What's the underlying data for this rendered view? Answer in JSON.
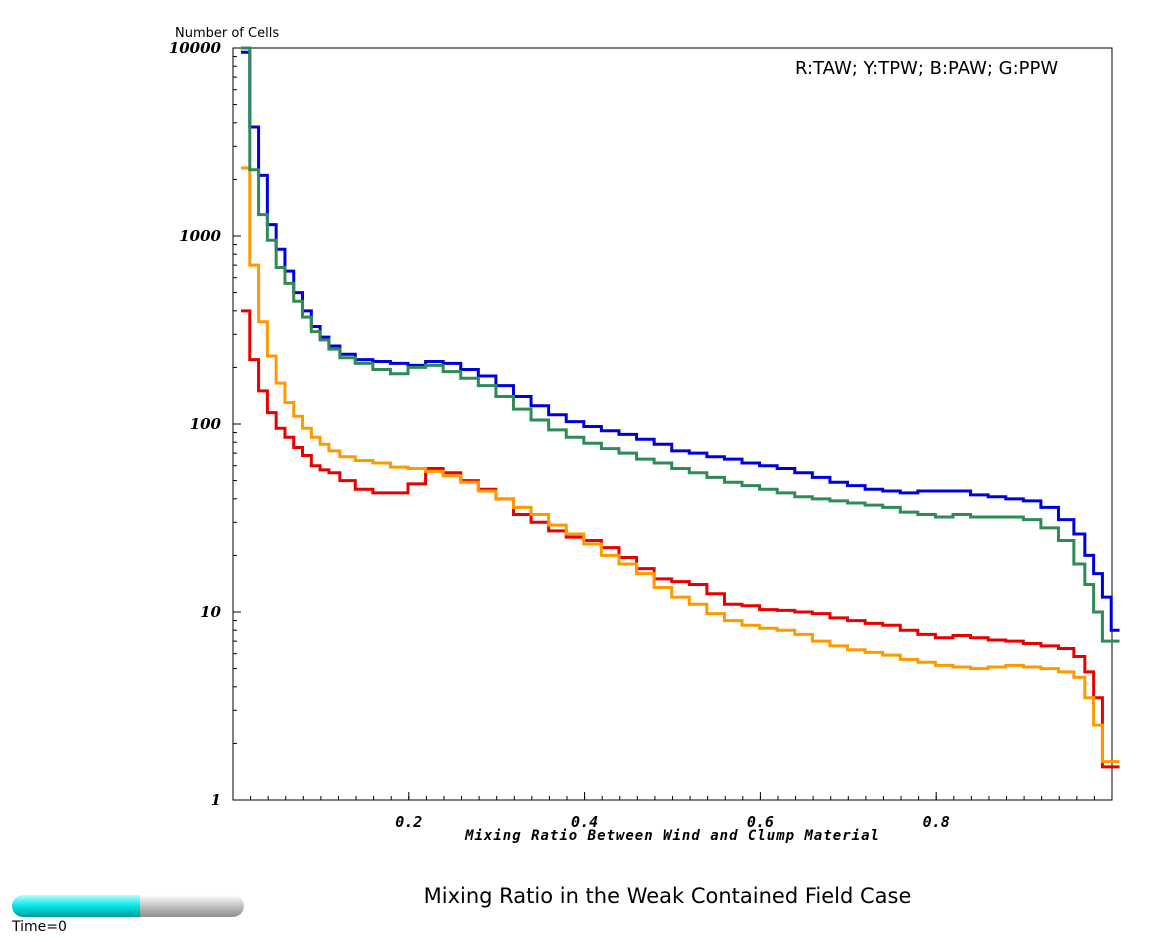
{
  "chart_data": {
    "type": "line",
    "title": "Mixing Ratio in the Weak Contained Field Case",
    "xlabel": "Mixing Ratio Between Wind and Clump Material",
    "ylabel": "Number of Cells",
    "xlim": [
      0,
      1
    ],
    "ylim": [
      1,
      10000
    ],
    "yscale": "log",
    "x_ticks": [
      "0.2",
      "0.4",
      "0.6",
      "0.8"
    ],
    "y_ticks": [
      "1",
      "10",
      "100",
      "1000",
      "10000"
    ],
    "legend": "R:TAW; Y:TPW; B:PAW; G:PPW",
    "legend_position": "top-right",
    "grid": false,
    "step": true,
    "x": [
      0.005,
      0.015,
      0.025,
      0.035,
      0.045,
      0.055,
      0.065,
      0.075,
      0.085,
      0.095,
      0.105,
      0.12,
      0.14,
      0.16,
      0.18,
      0.2,
      0.22,
      0.24,
      0.26,
      0.28,
      0.3,
      0.32,
      0.34,
      0.36,
      0.38,
      0.4,
      0.42,
      0.44,
      0.46,
      0.48,
      0.5,
      0.52,
      0.54,
      0.56,
      0.58,
      0.6,
      0.62,
      0.64,
      0.66,
      0.68,
      0.7,
      0.72,
      0.74,
      0.76,
      0.78,
      0.8,
      0.82,
      0.84,
      0.86,
      0.88,
      0.9,
      0.92,
      0.94,
      0.955,
      0.965,
      0.975,
      0.985,
      0.995
    ],
    "series": [
      {
        "name": "R",
        "color": "#e60000",
        "values": [
          400,
          220,
          150,
          115,
          95,
          85,
          75,
          68,
          60,
          57,
          55,
          50,
          45,
          43,
          43,
          48,
          58,
          55,
          50,
          45,
          40,
          33,
          30,
          27,
          25,
          24,
          22,
          19.5,
          17,
          15,
          14.5,
          14,
          12.5,
          11,
          10.8,
          10.3,
          10.2,
          10,
          9.8,
          9.3,
          9,
          8.7,
          8.5,
          8,
          7.6,
          7.3,
          7.5,
          7.3,
          7.1,
          7,
          6.8,
          6.6,
          6.4,
          5.8,
          4.8,
          3.5,
          1.5,
          1.5
        ]
      },
      {
        "name": "Y",
        "color": "#ff9900",
        "values": [
          2300,
          700,
          350,
          230,
          165,
          130,
          110,
          95,
          85,
          78,
          72,
          67,
          64,
          62,
          59,
          58,
          56,
          53,
          49,
          44,
          40,
          36,
          33,
          29,
          26,
          23,
          20,
          18,
          16,
          13.5,
          12,
          11,
          9.8,
          9,
          8.5,
          8.2,
          8,
          7.6,
          7,
          6.6,
          6.3,
          6.1,
          5.9,
          5.6,
          5.4,
          5.2,
          5.1,
          5,
          5.1,
          5.2,
          5.1,
          5,
          4.8,
          4.5,
          3.5,
          2.5,
          1.6,
          1.6
        ]
      },
      {
        "name": "B",
        "color": "#0000dd",
        "values": [
          9500,
          3800,
          2100,
          1150,
          850,
          650,
          500,
          400,
          330,
          290,
          260,
          235,
          220,
          215,
          210,
          205,
          215,
          210,
          195,
          180,
          160,
          140,
          125,
          112,
          103,
          97,
          92,
          88,
          83,
          78,
          72,
          70,
          67,
          65,
          62,
          60,
          58,
          55,
          52,
          49,
          47,
          45,
          44,
          43,
          44,
          44,
          44,
          42,
          41,
          40,
          39,
          36,
          31,
          26,
          20,
          16,
          12,
          8
        ]
      },
      {
        "name": "G",
        "color": "#2e8b57",
        "values": [
          10000,
          2250,
          1300,
          950,
          680,
          560,
          450,
          370,
          310,
          280,
          250,
          225,
          210,
          195,
          185,
          200,
          205,
          190,
          175,
          160,
          140,
          120,
          105,
          93,
          85,
          79,
          74,
          70,
          65,
          62,
          58,
          55,
          52,
          49,
          47,
          45,
          43,
          41,
          40,
          39,
          38,
          37,
          36,
          34,
          33,
          32,
          33,
          32,
          32,
          32,
          31,
          28,
          24,
          18,
          14,
          10,
          7,
          7
        ]
      }
    ]
  },
  "time_slider": {
    "label": "Time=0",
    "fill_fraction": 0.55
  }
}
